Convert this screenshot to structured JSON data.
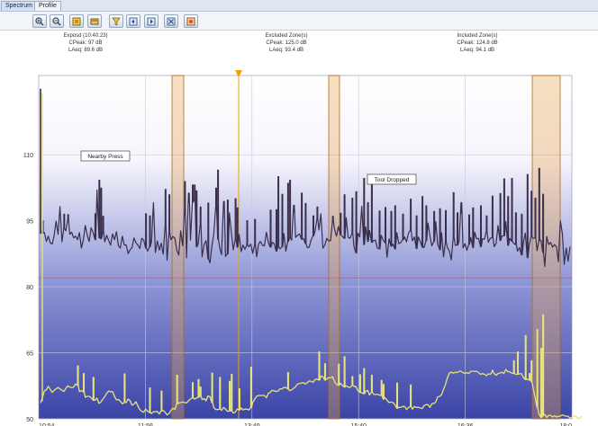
{
  "tabs": [
    {
      "label": "Spectrum"
    },
    {
      "label": "Profile"
    }
  ],
  "toolbar": {
    "icons": [
      "zoom-in-icon",
      "zoom-out-icon",
      "marker-icon",
      "export-icon",
      "filter-icon",
      "cursor-left-icon",
      "cursor-right-icon",
      "settings-icon",
      "alert-icon"
    ]
  },
  "colors": {
    "top_series": "#3a2f4a",
    "bottom_series": "#e8e27a",
    "band_fill": "#e9a44d",
    "cursor": "#f0a000",
    "threshold": "#e05a5a",
    "bg_top": "#ffffff",
    "bg_bottom": "#3b46a8"
  },
  "chart_data": {
    "type": "line",
    "title": "",
    "xlabel": "",
    "ylabel": "",
    "y_ticks": [
      "110",
      "95",
      "80",
      "65",
      "50"
    ],
    "x_ticks": [
      "10:54",
      "11:56",
      "13:40",
      "15:40",
      "16:36",
      "18:0"
    ],
    "grid": true,
    "annotations": [
      {
        "text": "Nearby Press",
        "x": "11:10",
        "y": 103
      },
      {
        "text": "Tool Dropped",
        "x": "15:45",
        "y": 97
      }
    ],
    "zone_labels": [
      {
        "lines": [
          "Exposd (10:40:23)",
          "CPeak: 97 dB",
          "LAeq: 89.6 dB"
        ]
      },
      {
        "lines": [
          "Excluded Zone(s)",
          "CPeak: 125.0 dB",
          "LAeq: 93.4 dB"
        ]
      },
      {
        "lines": [
          "Included Zone(s)",
          "CPeak: 124.8 dB",
          "LAeq: 94.1 dB"
        ]
      }
    ],
    "threshold": 82,
    "ylim": [
      50,
      128
    ],
    "series": [
      {
        "values": [
          92.7,
          92.2,
          92.3,
          90.3,
          91.5,
          90.0,
          89.7,
          91.6,
          94.9,
          91.9,
          98.2,
          90.2,
          93.3,
          92.7,
          95.4,
          91.9,
          92.4,
          91.1,
          91.5,
          90.7,
          92.3,
          88.8,
          90.8,
          93.9,
          91.7,
          90.3,
          93.4,
          92.3,
          90.7,
          102.0,
          91.1,
          90.9,
          92.6,
          90.2,
          91.7,
          90.5,
          89.5,
          92.0,
          90.7,
          92.5,
          89.3,
          88.8,
          91.5,
          89.5,
          89.5,
          87.5,
          88.4,
          88.9,
          91.1,
          90.0,
          89.5,
          88.7,
          91.0,
          90.6,
          88.8,
          88.1,
          89.1,
          90.2,
          99.1,
          87.8,
          90.4,
          88.3,
          89.9,
          87.4,
          94.0,
          86.0,
          92.3,
          90.7,
          91.4,
          91.0,
          88.3,
          87.2,
          92.7,
          89.3,
          97.9,
          86.6,
          101.3,
          90.6,
          99.2,
          99.8,
          89.1,
          89.8,
          94.2,
          86.8,
          89.6,
          90.5,
          86.3,
          85.4,
          89.1,
          92.0,
          98.5,
          90.8,
          88.9,
          87.3,
          99.2,
          86.9,
          87.5,
          96.8,
          92.3,
          88.4,
          90.8,
          89.0,
          91.9,
          88.0,
          89.5,
          88.5,
          89.5,
          89.1,
          89.7,
          87.6,
          89.6,
          86.8,
          89.7,
          90.3,
          89.4,
          89.3,
          92.4,
          90.1,
          89.0,
          90.1,
          89.8,
          88.1,
          89.1,
          88.6,
          89.1,
          92.1,
          88.1,
          90.3,
          91.1,
          90.6,
          98.5,
          91.2,
          91.7,
          92.0,
          90.8,
          91.0,
          89.8,
          88.9,
          89.0,
          90.7,
          91.6,
          92.6,
          95.5,
          92.9,
          96.6,
          88.8,
          89.4,
          91.0,
          90.4,
          90.5,
          95.2,
          93.1,
          91.5,
          93.7,
          91.8,
          91.4,
          91.0,
          95.7,
          91.2,
          91.0,
          92.2,
          89.1,
          87.7,
          92.2,
          91.3,
          98.3,
          89.6,
          93.6,
          90.3,
          92.8,
          90.1,
          90.5,
          90.6,
          88.8,
          88.6,
          91.7,
          90.6,
          90.0,
          86.7,
          90.9,
          89.2,
          89.7,
          88.6,
          92.3,
          89.8,
          90.0,
          90.7,
          91.3,
          90.2,
          92.2,
          92.9,
          90.4,
          91.3,
          88.7,
          91.3,
          90.4,
          89.0,
          88.9,
          90.5,
          94.5,
          91.6,
          89.3,
          90.3,
          94.8,
          89.7,
          88.4,
          92.3,
          86.8,
          90.2,
          88.9,
          88.1,
          86.1,
          91.3,
          89.4,
          89.5,
          90.3,
          99.1,
          88.8,
          89.8,
          88.3,
          89.7,
          91.2,
          88.9,
          92.4,
          90.9,
          91.0,
          89.1,
          90.9,
          90.8,
          92.6,
          90.1,
          91.0,
          91.2,
          89.1,
          89.9,
          93.9,
          90.5,
          91.5,
          91.6,
          94.8,
          89.4,
          91.0,
          90.3,
          89.9,
          89.6,
          88.1,
          88.9,
          87.2,
          90.0,
          92.2,
          86.6,
          89.4,
          91.5,
          91.0,
          91.1,
          88.2,
          90.5,
          90.6,
          87.8,
          84.6,
          91.4,
          89.6,
          90.1,
          89.0,
          89.6,
          89.1,
          85.7,
          95.0,
          92.1,
          85.1,
          88.8,
          85.8,
          89.1
        ],
        "spikes": [
          [
            1,
            95.0
          ],
          [
            12,
            96.5
          ],
          [
            14,
            96.4
          ],
          [
            28,
            96.6
          ],
          [
            30,
            104.2
          ],
          [
            31,
            102.4
          ],
          [
            32,
            96.0
          ],
          [
            54,
            96.6
          ],
          [
            56,
            96.1
          ],
          [
            64,
            102.1
          ],
          [
            66,
            100.9
          ],
          [
            74,
            103.9
          ],
          [
            76,
            99.2
          ],
          [
            78,
            103.1
          ],
          [
            79,
            103.1
          ],
          [
            80,
            101.8
          ],
          [
            82,
            98.1
          ],
          [
            86,
            99.0
          ],
          [
            90,
            102.4
          ],
          [
            91,
            106.5
          ],
          [
            94,
            99.4
          ],
          [
            96,
            99.7
          ],
          [
            100,
            100.0
          ],
          [
            101,
            97.9
          ],
          [
            106,
            95.0
          ],
          [
            110,
            95.3
          ],
          [
            118,
            97.4
          ],
          [
            121,
            97.5
          ],
          [
            122,
            105.0
          ],
          [
            124,
            101.0
          ],
          [
            127,
            103.5
          ],
          [
            128,
            104.2
          ],
          [
            130,
            97.0
          ],
          [
            134,
            101.3
          ],
          [
            136,
            98.9
          ],
          [
            140,
            96.1
          ],
          [
            142,
            98.1
          ],
          [
            150,
            96.0
          ],
          [
            154,
            96.7
          ],
          [
            156,
            100.9
          ],
          [
            160,
            100.1
          ],
          [
            162,
            101.6
          ],
          [
            166,
            104.6
          ],
          [
            168,
            99.1
          ],
          [
            170,
            105.5
          ],
          [
            174,
            97.2
          ],
          [
            177,
            98.0
          ],
          [
            180,
            97.1
          ],
          [
            182,
            98.4
          ],
          [
            186,
            96.5
          ],
          [
            190,
            99.9
          ],
          [
            193,
            96.1
          ],
          [
            196,
            100.5
          ],
          [
            198,
            98.4
          ],
          [
            202,
            97.1
          ],
          [
            205,
            97.7
          ],
          [
            208,
            97.3
          ],
          [
            212,
            101.4
          ],
          [
            214,
            96.8
          ],
          [
            216,
            96.7
          ],
          [
            220,
            96.3
          ],
          [
            222,
            97.9
          ],
          [
            226,
            98.4
          ],
          [
            229,
            96.1
          ],
          [
            232,
            100.6
          ],
          [
            236,
            101.2
          ],
          [
            238,
            104.5
          ],
          [
            240,
            100.5
          ],
          [
            242,
            104.6
          ],
          [
            244,
            96.8
          ],
          [
            247,
            96.5
          ],
          [
            250,
            105.5
          ],
          [
            252,
            101.7
          ],
          [
            254,
            100.1
          ],
          [
            256,
            106.9
          ],
          [
            258,
            101.0
          ]
        ]
      },
      {
        "values": [
          53.6,
          54.9,
          56.3,
          56.6,
          57.4,
          56.7,
          56.0,
          56.5,
          56.8,
          57.1,
          56.8,
          56.5,
          56.2,
          56.9,
          57.5,
          57.2,
          57.1,
          57.2,
          57.9,
          57.6,
          56.2,
          56.4,
          56.1,
          54.9,
          55.1,
          55.1,
          54.8,
          54.2,
          54.2,
          54.7,
          53.5,
          53.8,
          54.5,
          55.0,
          55.8,
          56.3,
          56.1,
          56.2,
          55.1,
          54.3,
          54.4,
          54.0,
          53.4,
          53.7,
          53.7,
          54.5,
          54.1,
          53.1,
          53.3,
          53.9,
          52.9,
          52.1,
          51.7,
          51.5,
          52.2,
          51.7,
          51.4,
          51.2,
          51.6,
          51.6,
          51.7,
          51.1,
          51.8,
          51.9,
          51.5,
          50.9,
          51.2,
          51.9,
          52.4,
          52.1,
          53.4,
          53.6,
          53.7,
          53.8,
          53.7,
          53.6,
          54.1,
          54.5,
          54.8,
          54.5,
          54.7,
          54.9,
          55.2,
          54.4,
          54.6,
          54.1,
          55.2,
          55.0,
          53.7,
          52.6,
          52.1,
          52.1,
          52.2,
          51.9,
          52.6,
          52.2,
          51.7,
          51.8,
          51.8,
          51.3,
          51.5,
          52.2,
          52.0,
          52.5,
          52.0,
          52.2,
          52.2,
          52.0,
          52.6,
          53.7,
          54.5,
          55.1,
          55.3,
          55.3,
          55.3,
          55.3,
          54.8,
          55.8,
          56.0,
          56.5,
          56.4,
          56.2,
          56.3,
          56.8,
          56.8,
          57.1,
          57.1,
          56.8,
          56.4,
          56.6,
          56.9,
          57.3,
          57.9,
          58.0,
          58.1,
          58.2,
          57.9,
          58.2,
          58.6,
          58.5,
          58.3,
          58.9,
          59.0,
          58.8,
          59.7,
          59.6,
          58.8,
          59.0,
          59.4,
          59.3,
          59.6,
          58.5,
          57.8,
          57.6,
          58.1,
          57.6,
          57.2,
          57.5,
          57.2,
          57.1,
          57.6,
          57.4,
          57.3,
          56.4,
          56.0,
          55.9,
          55.7,
          56.2,
          56.5,
          55.4,
          56.1,
          55.6,
          55.5,
          55.6,
          55.4,
          55.3,
          54.5,
          54.8,
          54.2,
          53.7,
          53.8,
          53.7,
          53.2,
          52.4,
          52.6,
          52.6,
          52.8,
          52.8,
          52.1,
          52.6,
          52.8,
          52.2,
          52.8,
          52.6,
          52.6,
          52.5,
          52.3,
          53.0,
          53.2,
          53.2,
          52.6,
          53.4,
          53.5,
          53.8,
          55.0,
          55.1,
          55.5,
          56.7,
          57.8,
          59.3,
          60.4,
          60.6,
          60.4,
          60.6,
          60.5,
          60.8,
          60.8,
          60.5,
          60.3,
          60.5,
          60.3,
          60.8,
          60.8,
          60.8,
          60.8,
          60.5,
          60.1,
          60.3,
          60.1,
          59.8,
          60.2,
          60.1,
          60.7,
          60.3,
          59.9,
          60.3,
          60.4,
          60.6,
          60.3,
          61.2,
          60.7,
          60.7,
          60.4,
          60.3,
          60.1,
          60.1,
          60.2,
          60.3,
          59.4,
          58.9,
          59.0,
          58.8,
          58.5,
          57.1,
          54.9,
          52.6,
          51.1,
          50.3,
          50.7,
          51.0,
          50.3,
          50.8,
          50.8,
          50.4,
          50.7,
          50.4,
          50.6,
          50.6,
          50.9,
          50.7,
          50.6,
          50.6,
          50.1,
          50.4,
          50.6,
          50.7,
          50.1,
          50.1,
          50.6
        ],
        "spikes": [
          [
            19,
            62.0
          ],
          [
            22,
            60.3
          ],
          [
            27,
            59.4
          ],
          [
            43,
            60.2
          ],
          [
            56,
            57.0
          ],
          [
            62,
            56.3
          ],
          [
            70,
            59.9
          ],
          [
            78,
            58.2
          ],
          [
            81,
            58.9
          ],
          [
            82,
            57.2
          ],
          [
            88,
            60.4
          ],
          [
            92,
            59.4
          ],
          [
            97,
            58.5
          ],
          [
            98,
            60.1
          ],
          [
            102,
            56.8
          ],
          [
            108,
            61.7
          ],
          [
            127,
            60.5
          ],
          [
            143,
            65.2
          ],
          [
            146,
            62.5
          ],
          [
            153,
            62.4
          ],
          [
            156,
            64.1
          ],
          [
            160,
            59.6
          ],
          [
            164,
            60.0
          ],
          [
            166,
            61.4
          ],
          [
            170,
            59.9
          ],
          [
            175,
            58.7
          ],
          [
            176,
            57.8
          ],
          [
            183,
            58.1
          ],
          [
            190,
            57.7
          ],
          [
            232,
            61.0
          ],
          [
            243,
            63.2
          ],
          [
            245,
            65.2
          ],
          [
            249,
            68.9
          ],
          [
            251,
            60.3
          ],
          [
            252,
            63.2
          ],
          [
            255,
            70.3
          ],
          [
            257,
            66.0
          ],
          [
            258,
            73.6
          ]
        ]
      }
    ]
  }
}
